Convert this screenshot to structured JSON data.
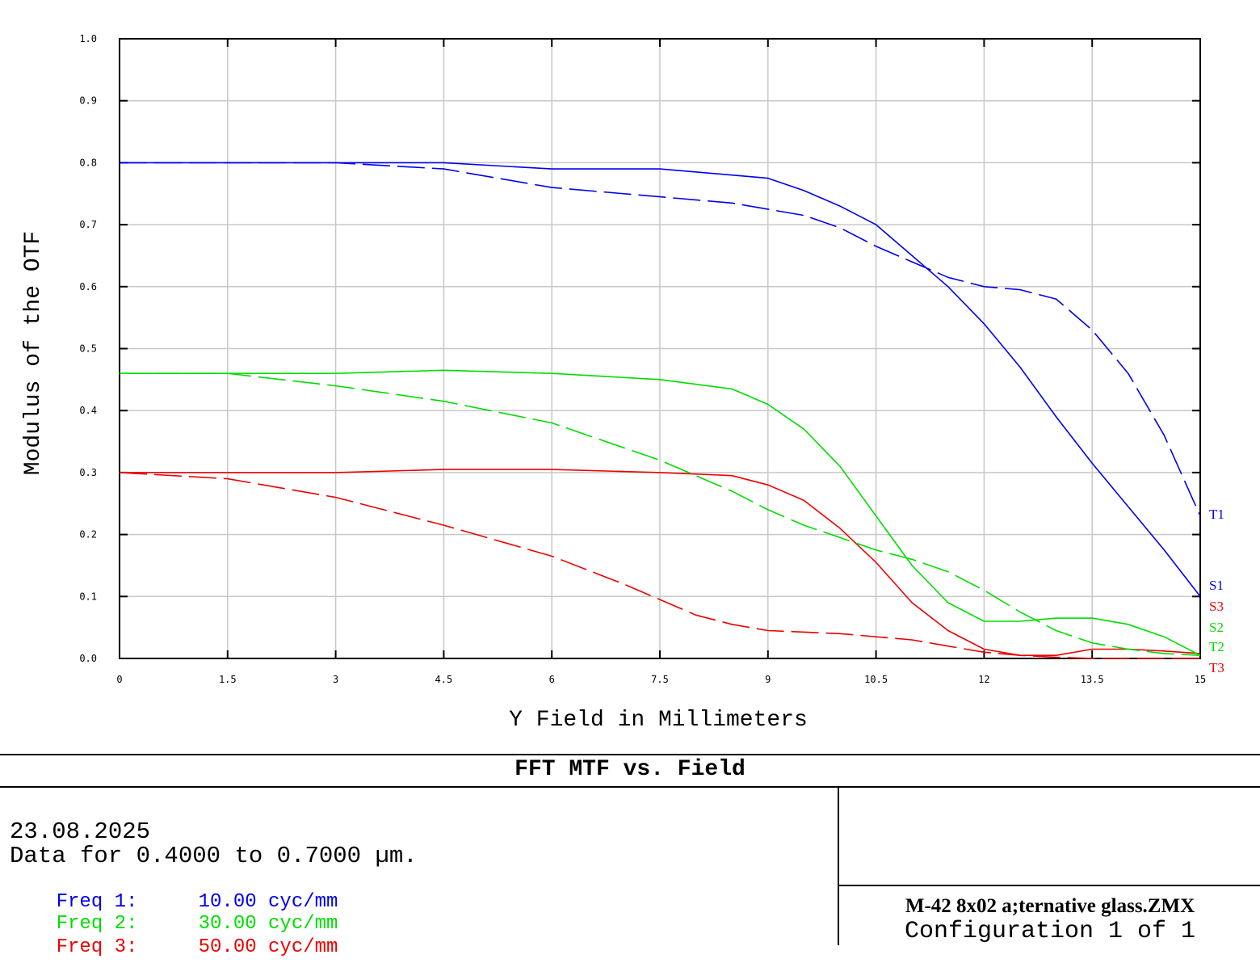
{
  "chart_data": {
    "type": "line",
    "title": "FFT MTF vs. Field",
    "xlabel": "Y Field in Millimeters",
    "ylabel": "Modulus of the OTF",
    "xlim": [
      0,
      15
    ],
    "ylim": [
      0,
      1.0
    ],
    "grid": true,
    "x_ticks": [
      "0",
      "1.5",
      "3",
      "4.5",
      "6",
      "7.5",
      "9",
      "10.5",
      "12",
      "13.5",
      "15"
    ],
    "y_ticks": [
      "0.0",
      "0.1",
      "0.2",
      "0.3",
      "0.4",
      "0.5",
      "0.6",
      "0.7",
      "0.8",
      "0.9",
      "1.0"
    ],
    "series": [
      {
        "name": "T1",
        "color": "#0000ee",
        "dash": true,
        "x": [
          0,
          1.5,
          3,
          4.5,
          6,
          7.5,
          8.5,
          9.5,
          10,
          10.5,
          11,
          11.5,
          12,
          12.5,
          13,
          13.5,
          14,
          14.5,
          15
        ],
        "y": [
          0.8,
          0.8,
          0.8,
          0.79,
          0.76,
          0.745,
          0.735,
          0.715,
          0.695,
          0.665,
          0.64,
          0.615,
          0.6,
          0.595,
          0.58,
          0.53,
          0.46,
          0.36,
          0.23
        ]
      },
      {
        "name": "S1",
        "color": "#0000ee",
        "dash": false,
        "x": [
          0,
          1.5,
          3,
          4.5,
          6,
          7.5,
          8.5,
          9,
          9.5,
          10,
          10.5,
          11,
          11.5,
          12,
          12.5,
          13,
          13.5,
          14,
          14.5,
          15
        ],
        "y": [
          0.8,
          0.8,
          0.8,
          0.8,
          0.79,
          0.79,
          0.78,
          0.775,
          0.755,
          0.73,
          0.7,
          0.65,
          0.6,
          0.54,
          0.47,
          0.39,
          0.315,
          0.245,
          0.175,
          0.1
        ]
      },
      {
        "name": "S3",
        "color": "#ee0000",
        "dash": false,
        "x": [
          0,
          1.5,
          3,
          4.5,
          6,
          7.5,
          8.5,
          9,
          9.5,
          10,
          10.5,
          11,
          11.5,
          12,
          12.5,
          13,
          13.5,
          14,
          14.5,
          15
        ],
        "y": [
          0.3,
          0.3,
          0.3,
          0.305,
          0.305,
          0.3,
          0.295,
          0.28,
          0.255,
          0.21,
          0.155,
          0.09,
          0.045,
          0.015,
          0.005,
          0.005,
          0.015,
          0.015,
          0.012,
          0.008
        ]
      },
      {
        "name": "S2",
        "color": "#00dd00",
        "dash": false,
        "x": [
          0,
          1.5,
          3,
          4.5,
          6,
          7.5,
          8.5,
          9,
          9.5,
          10,
          10.5,
          11,
          11.5,
          12,
          12.5,
          13,
          13.5,
          14,
          14.5,
          15
        ],
        "y": [
          0.46,
          0.46,
          0.46,
          0.465,
          0.46,
          0.45,
          0.435,
          0.41,
          0.37,
          0.31,
          0.23,
          0.15,
          0.09,
          0.06,
          0.06,
          0.065,
          0.065,
          0.055,
          0.035,
          0.005
        ]
      },
      {
        "name": "T2",
        "color": "#00dd00",
        "dash": true,
        "x": [
          0,
          1.5,
          3,
          4.5,
          6,
          7.5,
          8.5,
          9,
          9.5,
          10,
          10.5,
          11,
          11.5,
          12,
          12.5,
          13,
          13.5,
          14,
          14.5,
          15
        ],
        "y": [
          0.46,
          0.46,
          0.44,
          0.415,
          0.38,
          0.32,
          0.27,
          0.24,
          0.215,
          0.195,
          0.175,
          0.16,
          0.14,
          0.11,
          0.075,
          0.045,
          0.025,
          0.015,
          0.008,
          0.005
        ]
      },
      {
        "name": "T3",
        "color": "#ee0000",
        "dash": true,
        "x": [
          0,
          1.5,
          3,
          4.5,
          6,
          7,
          7.5,
          8,
          8.5,
          9,
          10,
          11,
          11.5,
          12,
          12.5,
          13,
          13.5,
          14,
          14.5,
          15
        ],
        "y": [
          0.3,
          0.29,
          0.26,
          0.215,
          0.165,
          0.12,
          0.095,
          0.07,
          0.055,
          0.045,
          0.04,
          0.03,
          0.02,
          0.01,
          0.005,
          0.002,
          0.0,
          0.0,
          0.0,
          0.0
        ]
      }
    ]
  },
  "info": {
    "title": "FFT MTF vs. Field",
    "date": "23.08.2025",
    "data_range": "Data for 0.4000 to 0.7000 µm.",
    "freqs": [
      {
        "label": "Freq 1:",
        "value": "10.00 cyc/mm",
        "color": "#0000ee"
      },
      {
        "label": "Freq 2:",
        "value": "30.00 cyc/mm",
        "color": "#00dd00"
      },
      {
        "label": "Freq 3:",
        "value": "50.00 cyc/mm",
        "color": "#ee0000"
      }
    ],
    "filename": "M-42 8x02 a;ternative glass.ZMX",
    "config": "Configuration 1 of 1"
  }
}
